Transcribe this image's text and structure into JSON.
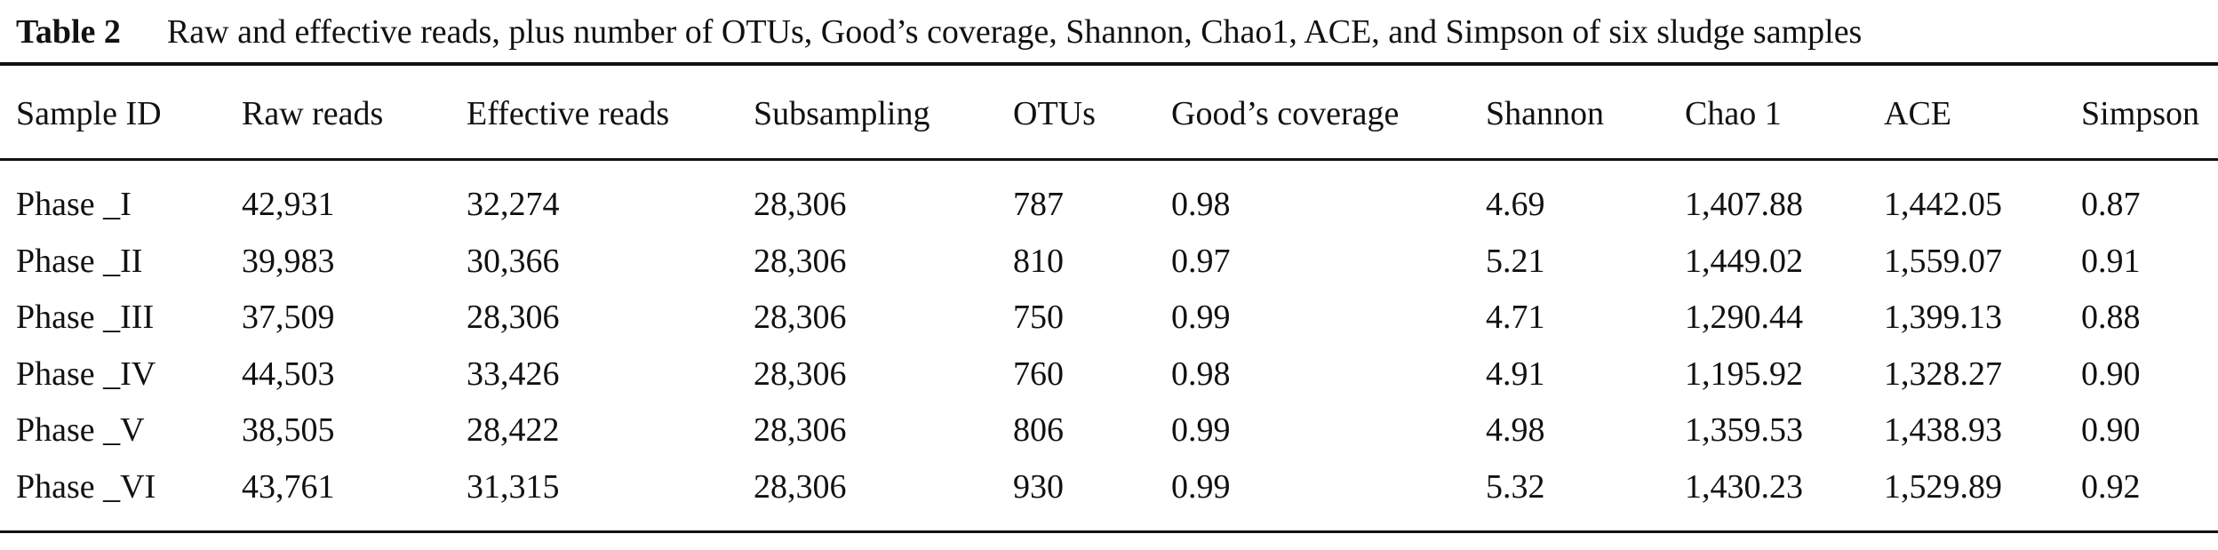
{
  "caption": {
    "label": "Table 2",
    "text": "Raw and effective reads, plus number of OTUs, Good’s coverage, Shannon, Chao1, ACE, and Simpson of six sludge samples"
  },
  "table": {
    "columns": [
      "Sample ID",
      "Raw reads",
      "Effective reads",
      "Subsampling",
      "OTUs",
      "Good’s coverage",
      "Shannon",
      "Chao 1",
      "ACE",
      "Simpson"
    ],
    "rows": [
      [
        "Phase _I",
        "42,931",
        "32,274",
        "28,306",
        "787",
        "0.98",
        "4.69",
        "1,407.88",
        "1,442.05",
        "0.87"
      ],
      [
        "Phase _II",
        "39,983",
        "30,366",
        "28,306",
        "810",
        "0.97",
        "5.21",
        "1,449.02",
        "1,559.07",
        "0.91"
      ],
      [
        "Phase _III",
        "37,509",
        "28,306",
        "28,306",
        "750",
        "0.99",
        "4.71",
        "1,290.44",
        "1,399.13",
        "0.88"
      ],
      [
        "Phase _IV",
        "44,503",
        "33,426",
        "28,306",
        "760",
        "0.98",
        "4.91",
        "1,195.92",
        "1,328.27",
        "0.90"
      ],
      [
        "Phase _V",
        "38,505",
        "28,422",
        "28,306",
        "806",
        "0.99",
        "4.98",
        "1,359.53",
        "1,438.93",
        "0.90"
      ],
      [
        "Phase _VI",
        "43,761",
        "31,315",
        "28,306",
        "930",
        "0.99",
        "5.32",
        "1,430.23",
        "1,529.89",
        "0.92"
      ]
    ]
  }
}
